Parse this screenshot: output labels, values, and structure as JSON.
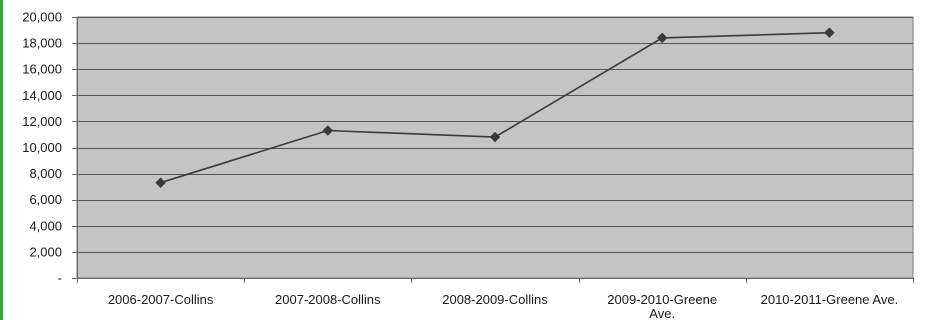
{
  "colors": {
    "plot_background": "#c4c4c4",
    "gridline": "#555555",
    "series_line": "#3a3a3a",
    "marker": "#3a3a3a",
    "left_accent": "#3aa33a"
  },
  "chart_data": {
    "type": "line",
    "title": "",
    "xlabel": "",
    "ylabel": "",
    "categories": [
      "2006-2007-Collins",
      "2007-2008-Collins",
      "2008-2009-Collins",
      "2009-2010-Greene Ave.",
      "2010-2011-Greene Ave."
    ],
    "category_label_lines": [
      [
        "2006-2007-Collins"
      ],
      [
        "2007-2008-Collins"
      ],
      [
        "2008-2009-Collins"
      ],
      [
        "2009-2010-Greene",
        "Ave."
      ],
      [
        "2010-2011-Greene Ave."
      ]
    ],
    "series": [
      {
        "values": [
          7300,
          11300,
          10800,
          18400,
          18800
        ],
        "marker": "diamond"
      }
    ],
    "ylim": [
      0,
      20000
    ],
    "yticks": [
      0,
      2000,
      4000,
      6000,
      8000,
      10000,
      12000,
      14000,
      16000,
      18000,
      20000
    ],
    "ytick_labels": [
      "-",
      "2,000",
      "4,000",
      "6,000",
      "8,000",
      "10,000",
      "12,000",
      "14,000",
      "16,000",
      "18,000",
      "20,000"
    ],
    "grid": true,
    "legend": "none"
  }
}
